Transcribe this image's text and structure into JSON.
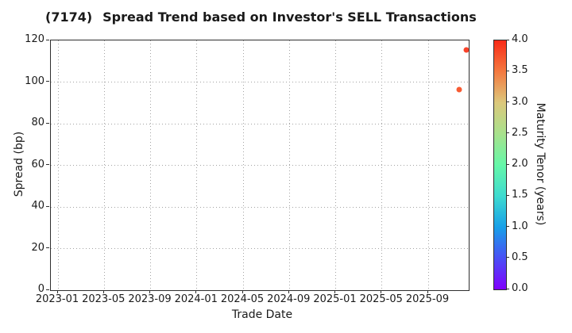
{
  "header": {
    "ticker": "(7174)",
    "title": "Spread Trend based on Investor's SELL Transactions"
  },
  "chart_data": {
    "type": "scatter",
    "title": "(7174)   Spread Trend based on Investor's SELL Transactions",
    "xlabel": "Trade Date",
    "ylabel": "Spread (bp)",
    "x_tick_labels": [
      "2023-01",
      "2023-05",
      "2023-09",
      "2024-01",
      "2024-05",
      "2024-09",
      "2025-01",
      "2025-05",
      "2025-09"
    ],
    "y_ticks": [
      0,
      20,
      40,
      60,
      80,
      100,
      120
    ],
    "ylim": [
      0,
      120
    ],
    "grid": {
      "style": "dotted",
      "color": "#a3a3a3"
    },
    "points": [
      {
        "date": "2025-12-10",
        "spread_bp": 115.5,
        "maturity_tenor_years": 3.8,
        "color": "#f8432a"
      },
      {
        "date": "2025-11-22",
        "spread_bp": 96.5,
        "maturity_tenor_years": 3.6,
        "color": "#f75b33"
      }
    ],
    "colorbar": {
      "label": "Maturity Tenor (years)",
      "min": 0.0,
      "max": 4.0,
      "tick_step": 0.5,
      "tick_labels": [
        "0.0",
        "0.5",
        "1.0",
        "1.5",
        "2.0",
        "2.5",
        "3.0",
        "3.5",
        "4.0"
      ],
      "colormap": "rainbow",
      "gradient_stops": [
        "#8000fe",
        "#4a4ff5",
        "#18a0e8",
        "#3edbd0",
        "#66f7a8",
        "#a8e18c",
        "#dcc87c",
        "#f47a40",
        "#f92a16"
      ]
    },
    "legend": null
  },
  "colors": {
    "background": "#ffffff",
    "text": "#1a1a1a",
    "spine": "#2e2e2e",
    "grid": "#a3a3a3"
  }
}
